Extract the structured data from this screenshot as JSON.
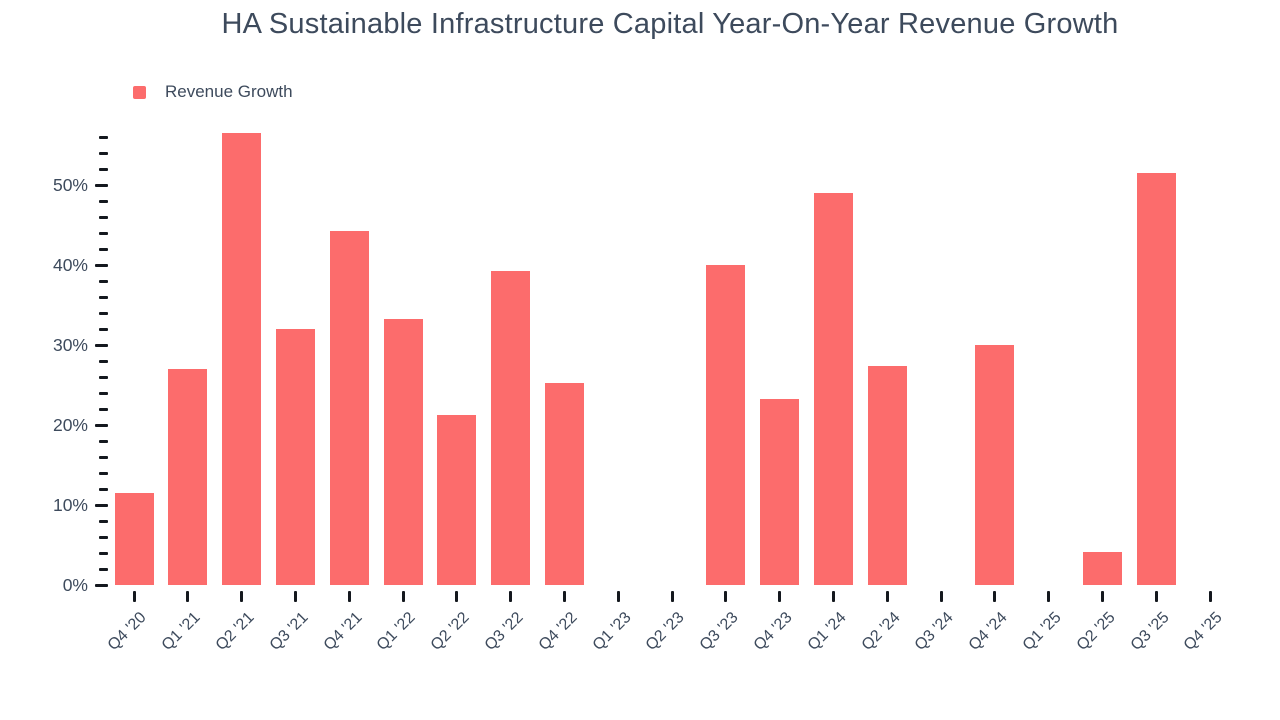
{
  "colors": {
    "bar": "#fc6c6c",
    "text": "#3d4a5c",
    "tick": "#14181e",
    "background": "#ffffff"
  },
  "chart_data": {
    "type": "bar",
    "title": "HA Sustainable Infrastructure Capital Year-On-Year Revenue Growth",
    "legend": [
      {
        "label": "Revenue Growth",
        "color": "#fc6c6c"
      }
    ],
    "xlabel": "",
    "ylabel": "",
    "categories": [
      "Q4 '20",
      "Q1 '21",
      "Q2 '21",
      "Q3 '21",
      "Q4 '21",
      "Q1 '22",
      "Q2 '22",
      "Q3 '22",
      "Q4 '22",
      "Q1 '23",
      "Q2 '23",
      "Q3 '23",
      "Q4 '23",
      "Q1 '24",
      "Q2 '24",
      "Q3 '24",
      "Q4 '24",
      "Q1 '25",
      "Q2 '25",
      "Q3 '25",
      "Q4 '25"
    ],
    "series": [
      {
        "name": "Revenue Growth",
        "unit": "%",
        "values": [
          11.5,
          27.0,
          56.5,
          32.0,
          44.2,
          33.2,
          21.2,
          39.2,
          25.3,
          null,
          null,
          40.0,
          23.2,
          49.0,
          27.4,
          null,
          30.0,
          null,
          4.1,
          51.5,
          null
        ]
      }
    ],
    "ylim": [
      0,
      56
    ],
    "y_major_ticks": [
      {
        "value": 0,
        "label": "0%"
      },
      {
        "value": 10,
        "label": "10%"
      },
      {
        "value": 20,
        "label": "20%"
      },
      {
        "value": 30,
        "label": "30%"
      },
      {
        "value": 40,
        "label": "40%"
      },
      {
        "value": 50,
        "label": "50%"
      }
    ],
    "y_minor_tick_step": 2,
    "grid": "off",
    "legend_position": "top-left"
  }
}
